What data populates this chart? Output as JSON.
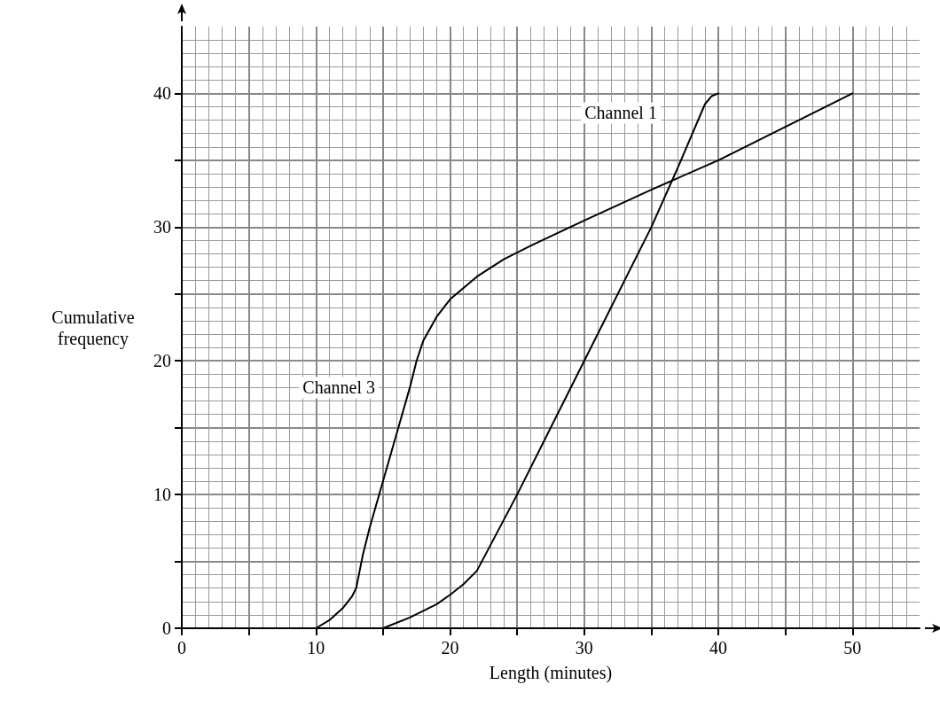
{
  "chart_data": {
    "type": "line",
    "xlabel": "Length (minutes)",
    "ylabel": "Cumulative frequency",
    "xlim": [
      0,
      55
    ],
    "ylim": [
      0,
      45
    ],
    "xticks": [
      0,
      {
        "value": 5,
        "label": null
      },
      10,
      {
        "value": 15,
        "label": null
      },
      20,
      {
        "value": 25,
        "label": null
      },
      30,
      {
        "value": 35,
        "label": null
      },
      40,
      {
        "value": 45,
        "label": null
      },
      50
    ],
    "yticks": [
      0,
      {
        "value": 5,
        "label": null
      },
      10,
      {
        "value": 15,
        "label": null
      },
      20,
      {
        "value": 25,
        "label": null
      },
      30,
      {
        "value": 35,
        "label": null
      },
      40
    ],
    "grid": true,
    "marker": "none",
    "line_style": "solid",
    "series": [
      {
        "name": "Channel 1",
        "color": "#000000",
        "x": [
          15,
          17,
          19,
          20,
          21,
          22,
          25,
          30,
          35,
          37,
          39,
          39.5,
          40
        ],
        "values": [
          0,
          0.8,
          1.8,
          2.5,
          3.3,
          4.3,
          10,
          20,
          30,
          34.5,
          39.2,
          39.8,
          40
        ]
      },
      {
        "name": "Channel 3",
        "color": "#000000",
        "x": [
          10,
          11,
          12,
          12.7,
          13,
          13.5,
          14,
          15,
          16,
          17,
          17.5,
          18,
          19,
          20,
          22,
          24,
          26,
          30,
          35,
          40,
          45,
          50
        ],
        "values": [
          0,
          0.6,
          1.5,
          2.4,
          3,
          5.5,
          7.5,
          11,
          14.5,
          18,
          20,
          21.5,
          23.3,
          24.6,
          26.3,
          27.6,
          28.6,
          30.5,
          32.8,
          35,
          37.5,
          40
        ]
      }
    ]
  }
}
